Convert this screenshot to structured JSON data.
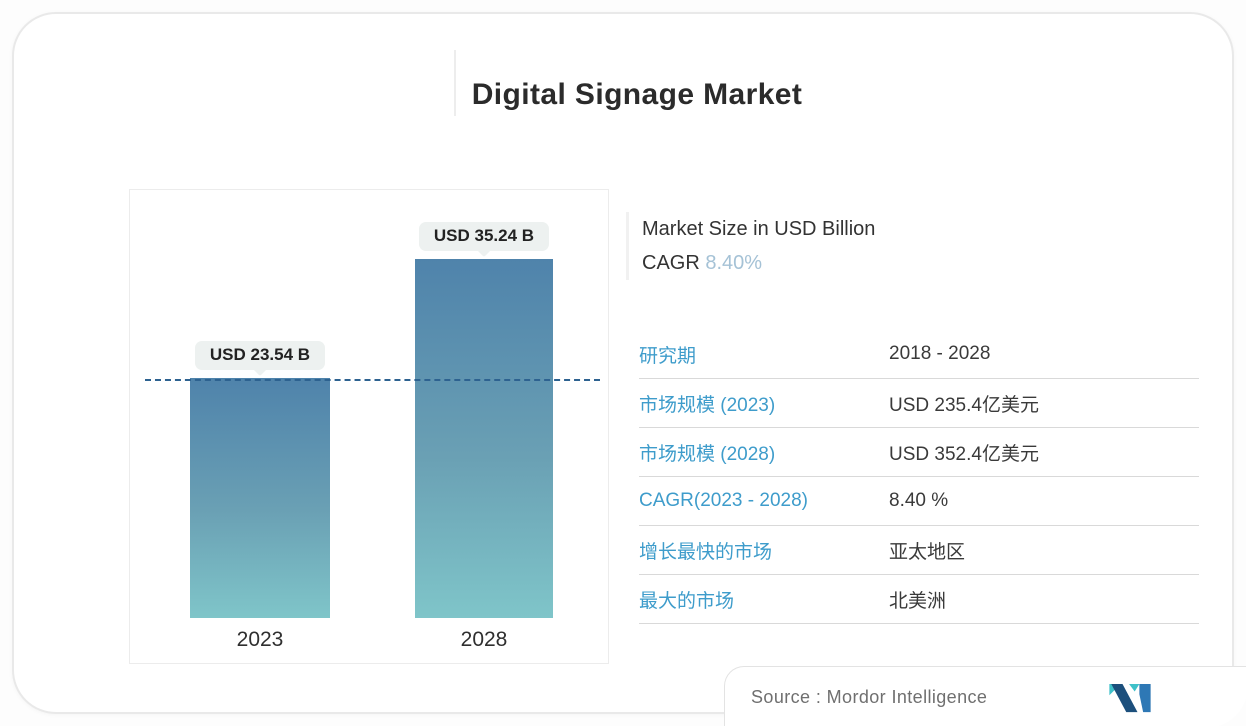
{
  "title": "Digital Signage Market",
  "info": {
    "line1": "Market Size in USD Billion",
    "cagr_label": "CAGR",
    "cagr_value": "8.40%"
  },
  "chart": {
    "bars": [
      {
        "category": "2023",
        "tooltip": "USD 23.54 B"
      },
      {
        "category": "2028",
        "tooltip": "USD 35.24 B"
      }
    ]
  },
  "table": {
    "rows": [
      {
        "label": "研究期",
        "value": "2018 - 2028"
      },
      {
        "label": "市场规模 (2023)",
        "value": "USD 235.4亿美元"
      },
      {
        "label": "市场规模 (2028)",
        "value": "USD 352.4亿美元"
      },
      {
        "label": "CAGR(2023 - 2028)",
        "value": "8.40 %"
      },
      {
        "label": "增长最快的市场",
        "value": "亚太地区"
      },
      {
        "label": "最大的市场",
        "value": "北美洲"
      }
    ]
  },
  "source": {
    "label": "Source :",
    "name": "Mordor Intelligence",
    "logo": "mordor-intelligence-m-logo"
  },
  "colors": {
    "table_label_blue": "#3e9ccb",
    "cagr_value_blue": "#a5c2d6",
    "bar_gradient_top": "#4f83ab",
    "bar_gradient_bottom": "#7fc5c9",
    "dashed_reference_line": "#2d6290",
    "tooltip_background": "#edf1f0",
    "logo_navy": "#1c4f7c",
    "logo_teal": "#3fc1c9",
    "logo_blue": "#2e78b5"
  },
  "chart_data": {
    "type": "bar",
    "categories": [
      "2023",
      "2028"
    ],
    "values": [
      23.54,
      35.24
    ],
    "unit": "USD Billion",
    "title": "Digital Signage Market",
    "ylabel": "Market Size in USD Billion",
    "data_labels": [
      "USD 23.54 B",
      "USD 35.24 B"
    ],
    "cagr": "8.40%",
    "reference_line": 23.54,
    "legend": false,
    "grid": false
  }
}
